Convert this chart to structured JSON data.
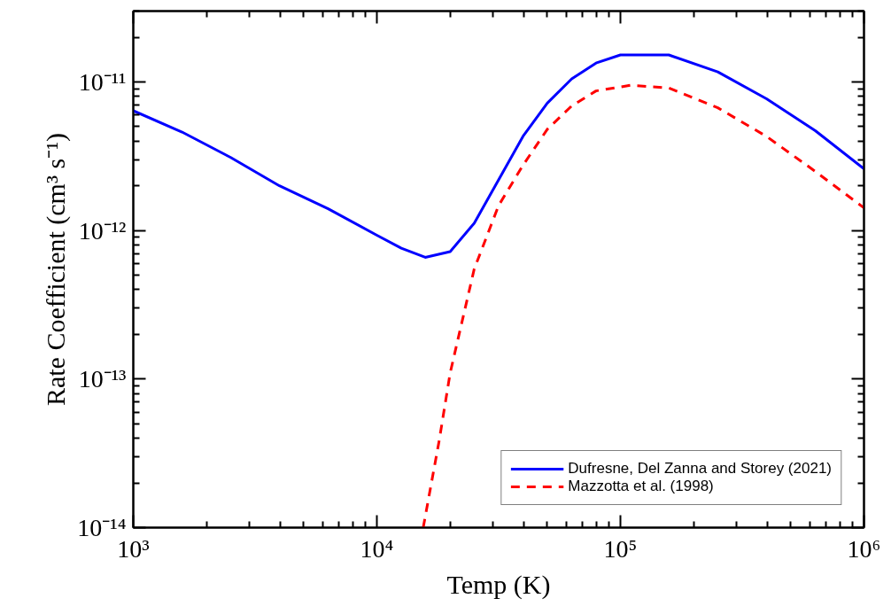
{
  "chart_data": {
    "type": "line",
    "xlabel": "Temp (K)",
    "ylabel": "Rate Coefficient (cm³ s⁻¹)",
    "log": "xy",
    "xlim": [
      1000,
      1000000
    ],
    "ylim": [
      1e-14,
      3e-11
    ],
    "xticks": [
      {
        "value": 1000,
        "label": "10³"
      },
      {
        "value": 10000,
        "label": "10⁴"
      },
      {
        "value": 100000,
        "label": "10⁵"
      },
      {
        "value": 1000000,
        "label": "10⁶"
      }
    ],
    "yticks": [
      {
        "value": 1e-14,
        "label": "10⁻¹⁴"
      },
      {
        "value": 1e-13,
        "label": "10⁻¹³"
      },
      {
        "value": 1e-12,
        "label": "10⁻¹²"
      },
      {
        "value": 1e-11,
        "label": "10⁻¹¹"
      }
    ],
    "grid": false,
    "legend": "bottom right",
    "series": [
      {
        "name": "Dufresne, Del Zanna and Storey (2021)",
        "color": "#0000ff",
        "line_style": "solid",
        "x": [
          1000,
          1585,
          2512,
          3981,
          6310,
          10000,
          12600,
          15800,
          20000,
          25100,
          39800,
          50100,
          63100,
          79400,
          100000,
          158000,
          251000,
          398000,
          631000,
          1000000
        ],
        "values": [
          6.4e-12,
          4.6e-12,
          3.1e-12,
          2e-12,
          1.4e-12,
          9.3e-13,
          7.6e-13,
          6.6e-13,
          7.2e-13,
          1.12e-12,
          4.3e-12,
          7.2e-12,
          1.05e-11,
          1.34e-11,
          1.52e-11,
          1.52e-11,
          1.17e-11,
          7.7e-12,
          4.7e-12,
          2.6e-12
        ]
      },
      {
        "name": "Mazzotta et al. (1998)",
        "color": "#ff0000",
        "line_style": "dashed",
        "x": [
          15500,
          18000,
          20000,
          25100,
          31600,
          39800,
          50100,
          63100,
          79400,
          110000,
          158000,
          251000,
          398000,
          631000,
          1000000
        ],
        "values": [
          1e-14,
          3.8e-14,
          1.1e-13,
          5.5e-13,
          1.47e-12,
          2.75e-12,
          4.8e-12,
          6.9e-12,
          8.7e-12,
          9.5e-12,
          9.1e-12,
          6.7e-12,
          4.3e-12,
          2.5e-12,
          1.42e-12
        ]
      }
    ]
  }
}
